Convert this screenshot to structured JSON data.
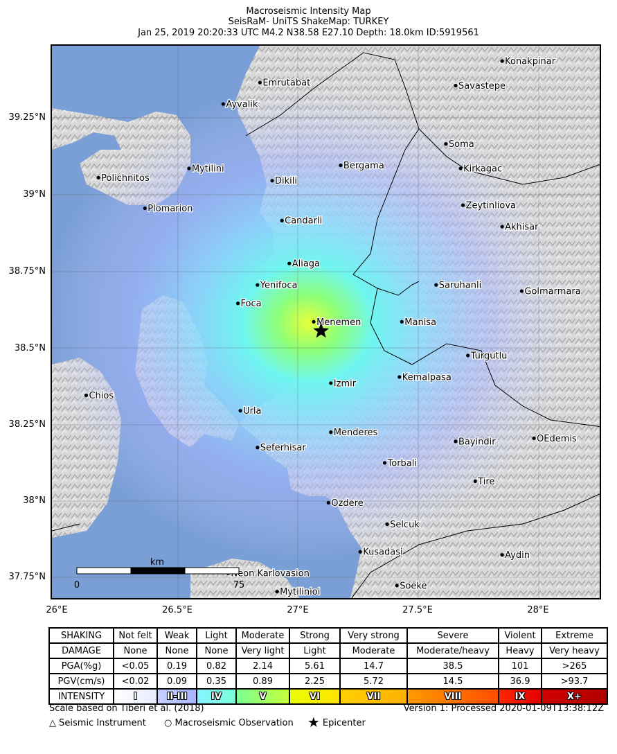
{
  "title": {
    "line1": "Macroseismic Intensity Map",
    "line2": "SeisRaM- UniTS ShakeMap: TURKEY",
    "line3": "Jan 25, 2019 20:20:33 UTC M4.2 N38.58 E27.10 Depth: 18.0km ID:5919561"
  },
  "axes": {
    "y_ticks": [
      "39.25°N",
      "39°N",
      "38.75°N",
      "38.5°N",
      "38.25°N",
      "38°N",
      "37.75°N"
    ],
    "x_ticks": [
      "26°E",
      "26.5°E",
      "27°E",
      "27.5°E",
      "28°E"
    ]
  },
  "map": {
    "lon_range": [
      26.0,
      28.25
    ],
    "lat_range": [
      37.7,
      39.51
    ],
    "epicenter": {
      "lon": 27.1,
      "lat": 38.58
    },
    "cities": [
      {
        "name": "Konakpinar",
        "lon": 27.84,
        "lat": 39.46
      },
      {
        "name": "Savastepe",
        "lon": 27.65,
        "lat": 39.38
      },
      {
        "name": "Emrutabat",
        "lon": 26.85,
        "lat": 39.39
      },
      {
        "name": "Ayvalik",
        "lon": 26.7,
        "lat": 39.32
      },
      {
        "name": "Soma",
        "lon": 27.61,
        "lat": 39.19
      },
      {
        "name": "Bergama",
        "lon": 27.18,
        "lat": 39.12
      },
      {
        "name": "Mytilini",
        "lon": 26.56,
        "lat": 39.11
      },
      {
        "name": "Kirkagac",
        "lon": 27.67,
        "lat": 39.11
      },
      {
        "name": "Polichnitos",
        "lon": 26.19,
        "lat": 39.08
      },
      {
        "name": "Dikili",
        "lon": 26.9,
        "lat": 39.07
      },
      {
        "name": "Zeytinliova",
        "lon": 27.68,
        "lat": 38.99
      },
      {
        "name": "Plomarion",
        "lon": 26.38,
        "lat": 38.98
      },
      {
        "name": "Candarli",
        "lon": 26.94,
        "lat": 38.94
      },
      {
        "name": "Akhisar",
        "lon": 27.84,
        "lat": 38.92
      },
      {
        "name": "Aliaga",
        "lon": 26.97,
        "lat": 38.8
      },
      {
        "name": "Yenifoca",
        "lon": 26.84,
        "lat": 38.73
      },
      {
        "name": "Saruhanli",
        "lon": 27.57,
        "lat": 38.73
      },
      {
        "name": "Golmarmara",
        "lon": 27.92,
        "lat": 38.71
      },
      {
        "name": "Foca",
        "lon": 26.76,
        "lat": 38.67
      },
      {
        "name": "Menemen",
        "lon": 27.07,
        "lat": 38.61
      },
      {
        "name": "Manisa",
        "lon": 27.43,
        "lat": 38.61
      },
      {
        "name": "Turgutlu",
        "lon": 27.7,
        "lat": 38.5
      },
      {
        "name": "Izmir",
        "lon": 27.14,
        "lat": 38.41
      },
      {
        "name": "Kemalpasa",
        "lon": 27.42,
        "lat": 38.43
      },
      {
        "name": "Chios",
        "lon": 26.14,
        "lat": 38.37
      },
      {
        "name": "Urla",
        "lon": 26.77,
        "lat": 38.32
      },
      {
        "name": "Menderes",
        "lon": 27.14,
        "lat": 38.25
      },
      {
        "name": "Bayindir",
        "lon": 27.65,
        "lat": 38.22
      },
      {
        "name": "OEdemis",
        "lon": 27.97,
        "lat": 38.23
      },
      {
        "name": "Seferhisar",
        "lon": 26.84,
        "lat": 38.2
      },
      {
        "name": "Torbali",
        "lon": 27.36,
        "lat": 38.15
      },
      {
        "name": "Tire",
        "lon": 27.73,
        "lat": 38.09
      },
      {
        "name": "Ozdere",
        "lon": 27.13,
        "lat": 38.02
      },
      {
        "name": "Selcuk",
        "lon": 27.37,
        "lat": 37.95
      },
      {
        "name": "Kusadasi",
        "lon": 27.26,
        "lat": 37.86
      },
      {
        "name": "Aydin",
        "lon": 27.84,
        "lat": 37.85
      },
      {
        "name": "Neon Karlovasion",
        "lon": 26.72,
        "lat": 37.79
      },
      {
        "name": "Mytilinioi",
        "lon": 26.92,
        "lat": 37.73
      },
      {
        "name": "Soeke",
        "lon": 27.41,
        "lat": 37.75
      }
    ],
    "scale_bar": {
      "unit": "km",
      "start": "0",
      "end": "75"
    }
  },
  "legend": {
    "rows": [
      {
        "label": "SHAKING",
        "cells": [
          "Not felt",
          "Weak",
          "Light",
          "Moderate",
          "Strong",
          "Very strong",
          "Severe",
          "Violent",
          "Extreme"
        ]
      },
      {
        "label": "DAMAGE",
        "cells": [
          "None",
          "None",
          "None",
          "Very light",
          "Light",
          "Moderate",
          "Moderate/heavy",
          "Heavy",
          "Very heavy"
        ]
      },
      {
        "label": "PGA(%g)",
        "cells": [
          "<0.05",
          "0.19",
          "0.82",
          "2.14",
          "5.61",
          "14.7",
          "38.5",
          "101",
          ">265"
        ]
      },
      {
        "label": "PGV(cm/s)",
        "cells": [
          "<0.02",
          "0.09",
          "0.35",
          "0.89",
          "2.25",
          "5.72",
          "14.5",
          "36.9",
          ">93.7"
        ]
      }
    ],
    "intensity_label": "INTENSITY",
    "intensity": [
      "I",
      "II-III",
      "IV",
      "V",
      "VI",
      "VII",
      "VIII",
      "IX",
      "X+"
    ],
    "intensity_colors": [
      [
        "#ffffff",
        "#e8ecff"
      ],
      [
        "#c8d0ff",
        "#a6b4ff"
      ],
      [
        "#86f3ff",
        "#7affd8"
      ],
      [
        "#7bff94",
        "#c4ff3c"
      ],
      [
        "#eaff00",
        "#ffe400"
      ],
      [
        "#ffd000",
        "#ffb000"
      ],
      [
        "#ff9b00",
        "#ff4c00"
      ],
      [
        "#ff2600",
        "#e20000"
      ],
      [
        "#d00000",
        "#b00000"
      ]
    ]
  },
  "footer": {
    "scale_note": "Scale based on Tiberi et al. (2018)",
    "version": "Version 1: Processed 2020-01-09T13:38:12Z",
    "legend_items": [
      {
        "symbol": "△",
        "label": "Seismic Instrument"
      },
      {
        "symbol": "○",
        "label": "Macroseismic Observation"
      },
      {
        "symbol": "★",
        "label": "Epicenter"
      }
    ]
  }
}
